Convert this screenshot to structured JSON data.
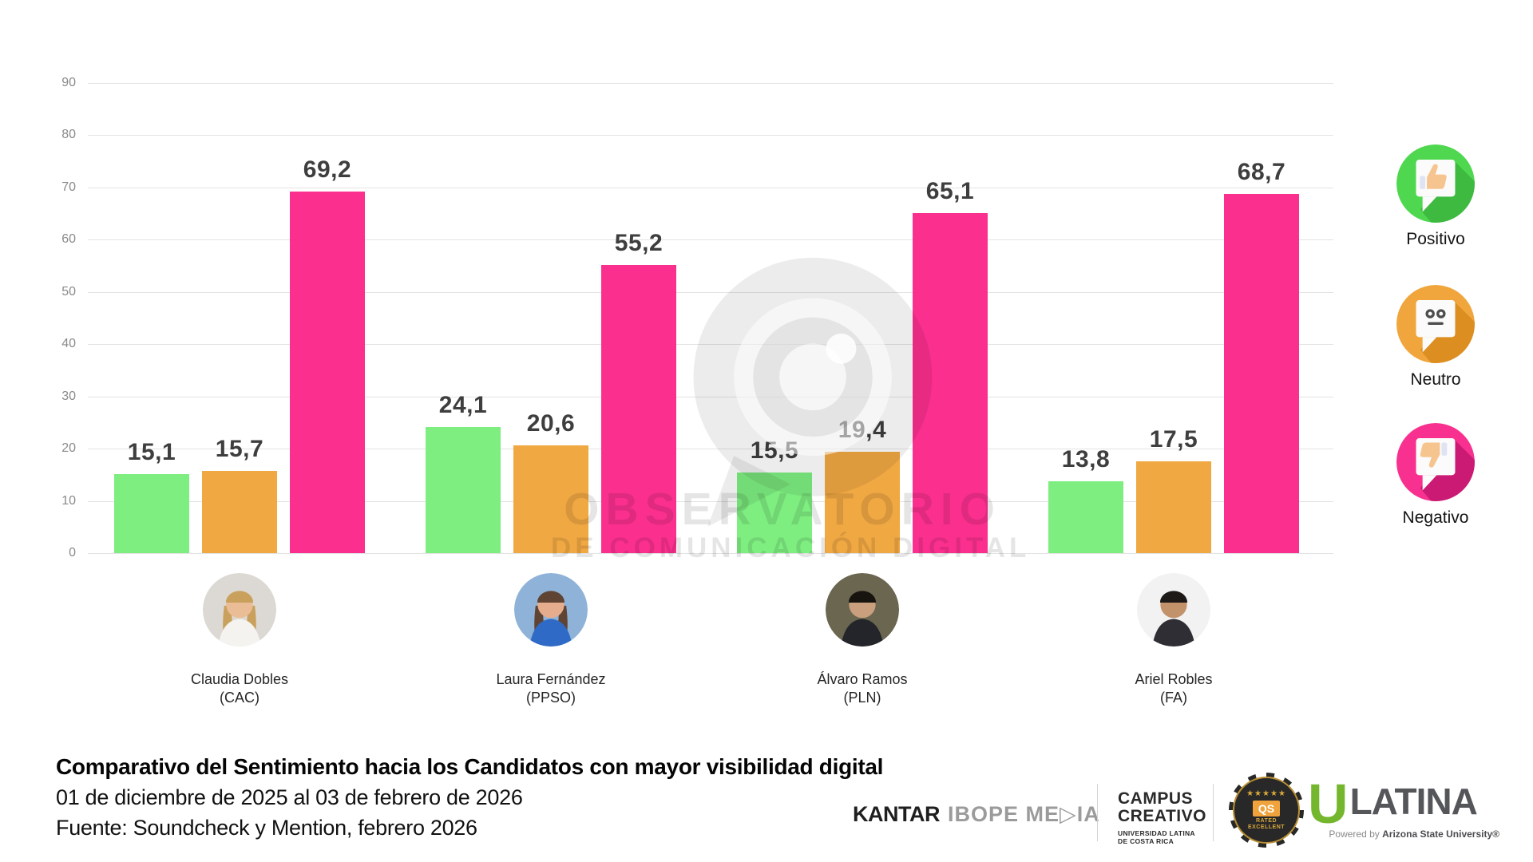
{
  "chart_data": {
    "type": "bar",
    "title": "Comparativo del Sentimiento hacia los Candidatos con mayor visibilidad digital",
    "categories": [
      "Claudia Dobles (CAC)",
      "Laura Fernández (PPSO)",
      "Álvaro Ramos (PLN)",
      "Ariel Robles (FA)"
    ],
    "series": [
      {
        "name": "Positivo",
        "color": "#7eee80",
        "values": [
          15.1,
          24.1,
          15.5,
          13.8
        ]
      },
      {
        "name": "Neutro",
        "color": "#f0a843",
        "values": [
          15.7,
          20.6,
          19.4,
          17.5
        ]
      },
      {
        "name": "Negativo",
        "color": "#fa2f8e",
        "values": [
          69.2,
          55.2,
          65.1,
          68.7
        ]
      }
    ],
    "ylim": [
      0,
      90
    ],
    "yticks": [
      0,
      10,
      20,
      30,
      40,
      50,
      60,
      70,
      80,
      90
    ],
    "grid": true,
    "legend_position": "right",
    "decimal_separator": ","
  },
  "candidates": [
    {
      "name": "Claudia Dobles",
      "party": "(CAC)",
      "avatar": {
        "bg": "#dcd9d4",
        "hair": "#c9a15c",
        "skin": "#eabd97",
        "shirt": "#f5f3f0",
        "long_hair": true
      }
    },
    {
      "name": "Laura Fernández",
      "party": "(PPSO)",
      "avatar": {
        "bg": "#8fb3d8",
        "hair": "#5f4434",
        "skin": "#e5ad8d",
        "shirt": "#2f6bc6",
        "long_hair": true
      }
    },
    {
      "name": "Álvaro Ramos",
      "party": "(PLN)",
      "avatar": {
        "bg": "#6a6650",
        "hair": "#17140f",
        "skin": "#c99f7e",
        "shirt": "#24252b",
        "long_hair": false
      }
    },
    {
      "name": "Ariel Robles",
      "party": "(FA)",
      "avatar": {
        "bg": "#f2f2f2",
        "hair": "#1c1917",
        "skin": "#c2936b",
        "shirt": "#2e2e34",
        "long_hair": false
      }
    }
  ],
  "legend": {
    "items": [
      {
        "label": "Positivo",
        "glyph": "thumb-up-bubble",
        "circle": "#4fd84f",
        "shadow": "#3ab53c"
      },
      {
        "label": "Neutro",
        "glyph": "neutral-face-bubble",
        "circle": "#f0a63c",
        "shadow": "#d8891c"
      },
      {
        "label": "Negativo",
        "glyph": "thumb-down-bubble",
        "circle": "#f83090",
        "shadow": "#c2166e"
      }
    ]
  },
  "watermark": {
    "line1": "OBSERVATORIO",
    "line2": "DE COMUNICACIÓN DIGITAL"
  },
  "footer": {
    "title": "Comparativo del Sentimiento hacia los Candidatos con mayor visibilidad digital",
    "date_range": "01 de diciembre de 2025 al 03 de febrero de 2026",
    "source": "Fuente: Soundcheck y Mention, febrero 2026"
  },
  "logos": {
    "kantar": {
      "brand": "KANTAR",
      "suffix_pre": "IBOPE ME",
      "suffix_triangle": "▷",
      "suffix_post": "IA"
    },
    "campus": {
      "line1": "CAMPUS",
      "line2": "CREATIVO",
      "sub1": "UNIVERSIDAD LATINA",
      "sub2": "DE COSTA RICA"
    },
    "qs_badge": {
      "stars": "★★★★★",
      "label": "QS",
      "sub1": "RATED",
      "sub2": "EXCELLENT"
    },
    "ulatina": {
      "initial": "U",
      "rest": "LATINA",
      "powered_prefix": "Powered by ",
      "powered_brand": "Arizona State University®"
    }
  }
}
